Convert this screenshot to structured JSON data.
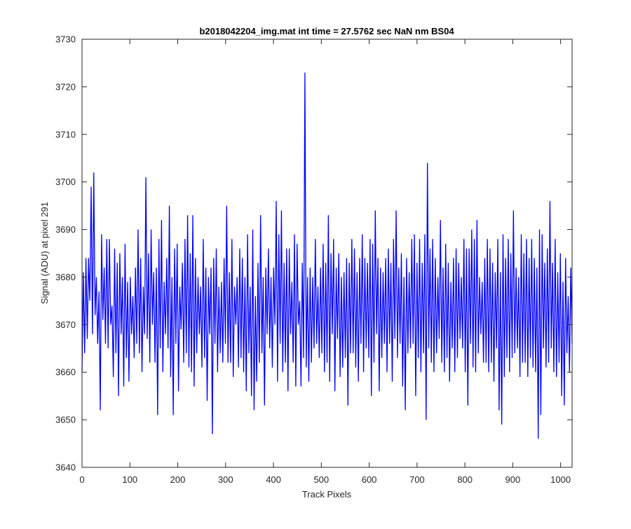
{
  "chart_data": {
    "type": "line",
    "title": "b2018042204_img.mat int time = 27.5762 sec  NaN nm BS04",
    "xlabel": "Track Pixels",
    "ylabel": "Signal (ADU) at pixel 291",
    "xlim": [
      0,
      1024
    ],
    "ylim": [
      3640,
      3730
    ],
    "xticks": [
      0,
      100,
      200,
      300,
      400,
      500,
      600,
      700,
      800,
      900,
      1000
    ],
    "yticks": [
      3640,
      3650,
      3660,
      3670,
      3680,
      3690,
      3700,
      3710,
      3720,
      3730
    ],
    "grid": false,
    "legend": "none",
    "series_color": "#0000ff",
    "series": [
      {
        "values": [
          3660,
          3681,
          3664,
          3684,
          3667,
          3684,
          3675,
          3699,
          3668,
          3702,
          3672,
          3680,
          3666,
          3677,
          3652,
          3689,
          3671,
          3682,
          3666,
          3688,
          3665,
          3688,
          3670,
          3674,
          3659,
          3686,
          3664,
          3683,
          3655,
          3685,
          3668,
          3680,
          3657,
          3687,
          3663,
          3679,
          3658,
          3680,
          3668,
          3676,
          3663,
          3682,
          3666,
          3690,
          3664,
          3684,
          3660,
          3678,
          3668,
          3701,
          3667,
          3685,
          3662,
          3690,
          3670,
          3681,
          3662,
          3682,
          3651,
          3688,
          3665,
          3692,
          3660,
          3679,
          3668,
          3684,
          3665,
          3695,
          3659,
          3680,
          3651,
          3686,
          3666,
          3687,
          3656,
          3678,
          3669,
          3683,
          3662,
          3688,
          3664,
          3693,
          3661,
          3685,
          3660,
          3693,
          3657,
          3684,
          3664,
          3680,
          3668,
          3678,
          3661,
          3688,
          3663,
          3682,
          3654,
          3680,
          3668,
          3682,
          3647,
          3684,
          3666,
          3686,
          3660,
          3678,
          3664,
          3679,
          3662,
          3684,
          3666,
          3695,
          3662,
          3681,
          3662,
          3688,
          3659,
          3678,
          3670,
          3680,
          3661,
          3686,
          3663,
          3684,
          3660,
          3680,
          3656,
          3689,
          3664,
          3678,
          3655,
          3690,
          3652,
          3676,
          3658,
          3683,
          3662,
          3693,
          3664,
          3680,
          3653,
          3682,
          3668,
          3686,
          3665,
          3680,
          3661,
          3682,
          3670,
          3696,
          3658,
          3689,
          3666,
          3694,
          3660,
          3683,
          3662,
          3686,
          3656,
          3686,
          3668,
          3679,
          3662,
          3689,
          3657,
          3687,
          3670,
          3675,
          3657,
          3683,
          3663,
          3723,
          3661,
          3680,
          3658,
          3682,
          3662,
          3680,
          3665,
          3688,
          3666,
          3678,
          3663,
          3682,
          3664,
          3687,
          3660,
          3683,
          3662,
          3693,
          3658,
          3685,
          3668,
          3688,
          3656,
          3682,
          3667,
          3685,
          3659,
          3680,
          3661,
          3681,
          3663,
          3684,
          3653,
          3683,
          3664,
          3688,
          3664,
          3686,
          3661,
          3681,
          3658,
          3684,
          3666,
          3689,
          3660,
          3684,
          3665,
          3683,
          3663,
          3688,
          3655,
          3687,
          3662,
          3694,
          3668,
          3684,
          3656,
          3682,
          3663,
          3681,
          3666,
          3684,
          3660,
          3686,
          3666,
          3683,
          3658,
          3688,
          3667,
          3694,
          3663,
          3682,
          3666,
          3685,
          3657,
          3680,
          3652,
          3684,
          3664,
          3681,
          3665,
          3688,
          3666,
          3689,
          3655,
          3683,
          3663,
          3688,
          3660,
          3683,
          3664,
          3689,
          3650,
          3704,
          3665,
          3686,
          3662,
          3688,
          3660,
          3684,
          3664,
          3680,
          3667,
          3692,
          3662,
          3682,
          3660,
          3687,
          3663,
          3683,
          3658,
          3679,
          3665,
          3684,
          3660,
          3686,
          3663,
          3683,
          3667,
          3680,
          3665,
          3688,
          3660,
          3686,
          3653,
          3686,
          3666,
          3690,
          3661,
          3688,
          3660,
          3692,
          3664,
          3680,
          3668,
          3679,
          3662,
          3684,
          3662,
          3688,
          3660,
          3686,
          3662,
          3683,
          3658,
          3681,
          3665,
          3688,
          3652,
          3681,
          3649,
          3689,
          3659,
          3684,
          3663,
          3688,
          3660,
          3685,
          3663,
          3694,
          3664,
          3682,
          3665,
          3680,
          3659,
          3689,
          3662,
          3685,
          3662,
          3688,
          3659,
          3684,
          3663,
          3688,
          3661,
          3684,
          3660,
          3682,
          3646,
          3690,
          3651,
          3689,
          3665,
          3683,
          3661,
          3686,
          3662,
          3696,
          3665,
          3683,
          3660,
          3688,
          3659,
          3681,
          3662,
          3685,
          3655,
          3679,
          3653,
          3684,
          3664,
          3676,
          3660,
          3682,
          3666
        ]
      }
    ]
  }
}
